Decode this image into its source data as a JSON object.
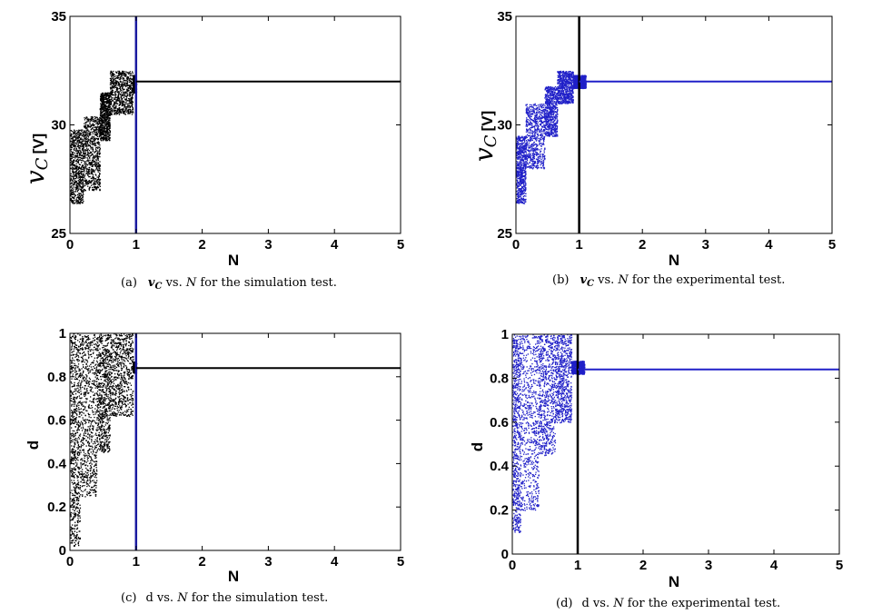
{
  "chart_data": [
    {
      "id": "a",
      "type": "scatter",
      "panel": "(a)",
      "caption_pre": "v",
      "caption_sub": "C",
      "caption_mid": " vs. ",
      "caption_N": "N",
      "caption_post": " for the simulation test.",
      "xlabel": "N",
      "ylabel_symbol": "v",
      "ylabel_sub": "C",
      "ylabel_unit": "[V]",
      "xlim": [
        0,
        5
      ],
      "ylim": [
        25,
        35
      ],
      "xticks": [
        0,
        1,
        2,
        3,
        4,
        5
      ],
      "yticks": [
        25,
        30,
        35
      ],
      "point_color": "#000000",
      "marker_color": "#1a1aa0",
      "marker_x": 1,
      "steady_value": 32.0,
      "bands": [
        {
          "x": [
            0.0,
            0.2
          ],
          "y": [
            26.4,
            29.8
          ]
        },
        {
          "x": [
            0.2,
            0.45
          ],
          "y": [
            27.0,
            30.4
          ]
        },
        {
          "x": [
            0.45,
            0.6
          ],
          "y": [
            29.3,
            31.5
          ]
        },
        {
          "x": [
            0.6,
            0.95
          ],
          "y": [
            30.5,
            32.5
          ]
        },
        {
          "x": [
            0.95,
            1.0
          ],
          "y": [
            31.5,
            32.3
          ]
        }
      ]
    },
    {
      "id": "b",
      "type": "scatter",
      "panel": "(b)",
      "caption_pre": "v",
      "caption_sub": "C",
      "caption_mid": " vs. ",
      "caption_N": "N",
      "caption_post": " for the experimental test.",
      "xlabel": "N",
      "ylabel_symbol": "v",
      "ylabel_sub": "C",
      "ylabel_unit": "[V]",
      "xlim": [
        0,
        5
      ],
      "ylim": [
        25,
        35
      ],
      "xticks": [
        0,
        1,
        2,
        3,
        4,
        5
      ],
      "yticks": [
        25,
        30,
        35
      ],
      "point_color": "#2020c8",
      "marker_color": "#000000",
      "marker_x": 1,
      "steady_value": 32.0,
      "bands": [
        {
          "x": [
            0.0,
            0.15
          ],
          "y": [
            26.4,
            29.5
          ]
        },
        {
          "x": [
            0.15,
            0.45
          ],
          "y": [
            28.0,
            31.0
          ]
        },
        {
          "x": [
            0.45,
            0.65
          ],
          "y": [
            29.5,
            31.8
          ]
        },
        {
          "x": [
            0.65,
            0.9
          ],
          "y": [
            31.0,
            32.5
          ]
        },
        {
          "x": [
            0.9,
            1.1
          ],
          "y": [
            31.7,
            32.3
          ]
        }
      ]
    },
    {
      "id": "c",
      "type": "scatter",
      "panel": "(c)",
      "caption_pre": "d",
      "caption_sub": "",
      "caption_mid": " vs. ",
      "caption_N": "N",
      "caption_post": " for the simulation test.",
      "xlabel": "N",
      "ylabel_symbol": "",
      "ylabel_sub": "",
      "ylabel_unit": "d",
      "xlim": [
        0,
        5
      ],
      "ylim": [
        0,
        1
      ],
      "xticks": [
        0,
        1,
        2,
        3,
        4,
        5
      ],
      "yticks": [
        0,
        0.2,
        0.4,
        0.6,
        0.8,
        1
      ],
      "point_color": "#000000",
      "marker_color": "#1a1aa0",
      "marker_x": 1,
      "steady_value": 0.84,
      "bands": [
        {
          "x": [
            0.0,
            0.15
          ],
          "y": [
            0.02,
            1.0
          ]
        },
        {
          "x": [
            0.15,
            0.4
          ],
          "y": [
            0.25,
            1.0
          ]
        },
        {
          "x": [
            0.4,
            0.6
          ],
          "y": [
            0.45,
            1.0
          ]
        },
        {
          "x": [
            0.6,
            0.95
          ],
          "y": [
            0.62,
            1.0
          ]
        },
        {
          "x": [
            0.95,
            1.0
          ],
          "y": [
            0.82,
            0.87
          ]
        }
      ]
    },
    {
      "id": "d",
      "type": "scatter",
      "panel": "(d)",
      "caption_pre": "d",
      "caption_sub": "",
      "caption_mid": " vs. ",
      "caption_N": "N",
      "caption_post": " for the experimental test.",
      "xlabel": "N",
      "ylabel_symbol": "",
      "ylabel_sub": "",
      "ylabel_unit": "d",
      "xlim": [
        0,
        5
      ],
      "ylim": [
        0,
        1
      ],
      "xticks": [
        0,
        1,
        2,
        3,
        4,
        5
      ],
      "yticks": [
        0,
        0.2,
        0.4,
        0.6,
        0.8,
        1
      ],
      "point_color": "#2020c8",
      "marker_color": "#000000",
      "marker_x": 1,
      "steady_value": 0.84,
      "bands": [
        {
          "x": [
            0.0,
            0.12
          ],
          "y": [
            0.1,
            1.0
          ]
        },
        {
          "x": [
            0.12,
            0.4
          ],
          "y": [
            0.2,
            1.0
          ]
        },
        {
          "x": [
            0.4,
            0.65
          ],
          "y": [
            0.45,
            1.0
          ]
        },
        {
          "x": [
            0.65,
            0.9
          ],
          "y": [
            0.6,
            1.0
          ]
        },
        {
          "x": [
            0.9,
            1.1
          ],
          "y": [
            0.82,
            0.88
          ]
        }
      ]
    }
  ]
}
